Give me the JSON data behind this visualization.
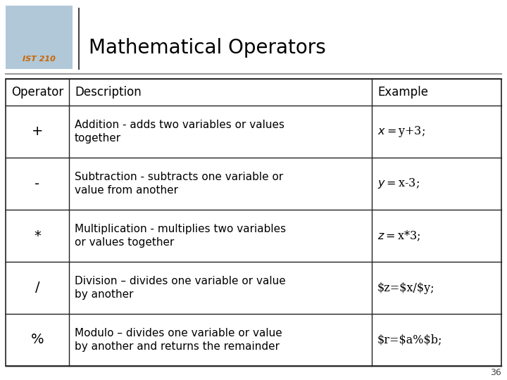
{
  "title": "Mathematical Operators",
  "background_color": "#ffffff",
  "header_row": [
    "Operator",
    "Description",
    "Example"
  ],
  "rows": [
    [
      "+",
      "Addition - adds two variables or values\ntogether",
      "$x=$y+3;"
    ],
    [
      "-",
      "Subtraction - subtracts one variable or\nvalue from another",
      "$y=$x-3;"
    ],
    [
      "*",
      "Multiplication - multiplies two variables\nor values together",
      "$z=$x*3;"
    ],
    [
      "/",
      "Division – divides one variable or value\nby another",
      "$z=$x/$y;"
    ],
    [
      "%",
      "Modulo – divides one variable or value\nby another and returns the remainder",
      "$r=$a%$b;"
    ]
  ],
  "page_number": "36",
  "line_color": "#222222",
  "title_color": "#000000",
  "cell_text_color": "#000000",
  "title_fontsize": 20,
  "header_fontsize": 12,
  "cell_fontsize": 11,
  "op_fontsize": 14
}
